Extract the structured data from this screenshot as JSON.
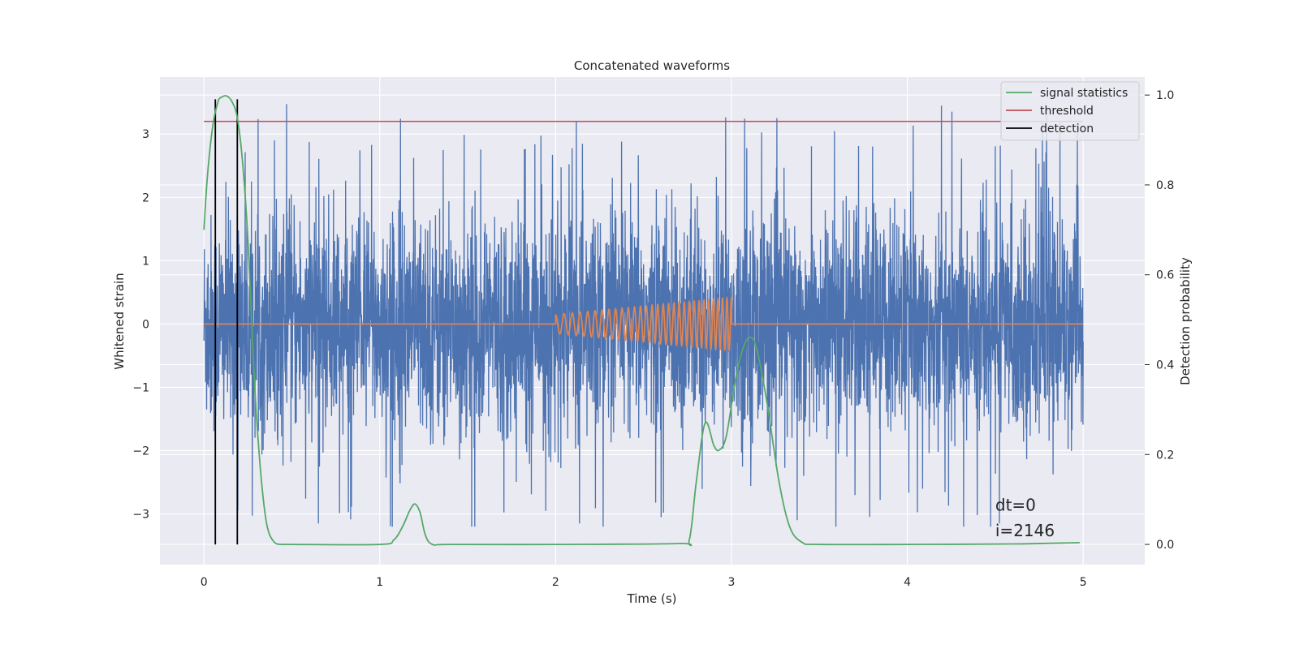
{
  "chart_data": {
    "type": "line",
    "title": "Concatenated waveforms",
    "xlabel": "Time (s)",
    "ylabel": "Whitened strain",
    "y2label": "Detection probability",
    "xlim": [
      -0.25,
      5.35
    ],
    "ylim": [
      -3.8,
      3.9
    ],
    "y2lim": [
      -0.045,
      1.04
    ],
    "xticks": [
      0,
      1,
      2,
      3,
      4,
      5
    ],
    "yticks": [
      -3,
      -2,
      -1,
      0,
      1,
      2,
      3
    ],
    "y2ticks": [
      0.0,
      0.2,
      0.4,
      0.6,
      0.8,
      1.0
    ],
    "y2ticklabels": [
      "0.0",
      "0.2",
      "0.4",
      "0.6",
      "0.8",
      "1.0"
    ],
    "grid": true,
    "legend_position": "top-right",
    "legend": [
      {
        "label": "signal statistics",
        "color": "#55a868"
      },
      {
        "label": "threshold",
        "color": "#c44e52"
      },
      {
        "label": "detection",
        "color": "#000000"
      }
    ],
    "series": [
      {
        "name": "whitened strain",
        "color": "#4c72b0",
        "axis": "left",
        "x_range": [
          0,
          5
        ],
        "amplitude_envelope": [
          -3.2,
          3.6
        ],
        "description_values": {
          "mean": 0,
          "typical_abs_max": 2.5
        }
      },
      {
        "name": "injected waveform",
        "color": "#dd8452",
        "axis": "left",
        "x_range": [
          0,
          5
        ],
        "chirp_start": 2.0,
        "chirp_end": 3.0,
        "start_amplitude": 0.15,
        "end_amplitude": 0.42,
        "start_freq_hz": 20,
        "end_freq_hz": 40
      },
      {
        "name": "signal statistics",
        "color": "#55a868",
        "axis": "right",
        "x": [
          0.0,
          0.02,
          0.05,
          0.08,
          0.1,
          0.13,
          0.16,
          0.19,
          0.22,
          0.25,
          0.28,
          0.3,
          0.33,
          0.36,
          0.4,
          0.45,
          0.5,
          1.0,
          1.08,
          1.13,
          1.17,
          1.2,
          1.23,
          1.26,
          1.3,
          1.4,
          2.0,
          2.7,
          2.76,
          2.8,
          2.85,
          2.9,
          2.93,
          2.97,
          3.02,
          3.06,
          3.1,
          3.14,
          3.2,
          3.27,
          3.33,
          3.4,
          3.5,
          4.0,
          4.6,
          4.98
        ],
        "y": [
          0.7,
          0.82,
          0.93,
          0.985,
          0.995,
          0.998,
          0.985,
          0.95,
          0.85,
          0.68,
          0.42,
          0.28,
          0.13,
          0.04,
          0.005,
          0.0,
          0.0,
          0.0,
          0.01,
          0.04,
          0.075,
          0.09,
          0.07,
          0.02,
          0.0,
          0.0,
          0.0,
          0.002,
          0.01,
          0.14,
          0.27,
          0.22,
          0.21,
          0.24,
          0.36,
          0.43,
          0.46,
          0.44,
          0.32,
          0.14,
          0.04,
          0.005,
          0.0,
          0.0,
          0.001,
          0.004
        ]
      },
      {
        "name": "threshold",
        "color": "#c44e52",
        "axis": "left",
        "x": [
          0,
          5
        ],
        "y": [
          3.2,
          3.2
        ]
      }
    ],
    "detections_x": [
      0.065,
      0.19
    ],
    "annotations": [
      {
        "text": "dt=0",
        "x": 4.5,
        "y": -2.95
      },
      {
        "text": "i=2146",
        "x": 4.5,
        "y": -3.35
      }
    ]
  }
}
